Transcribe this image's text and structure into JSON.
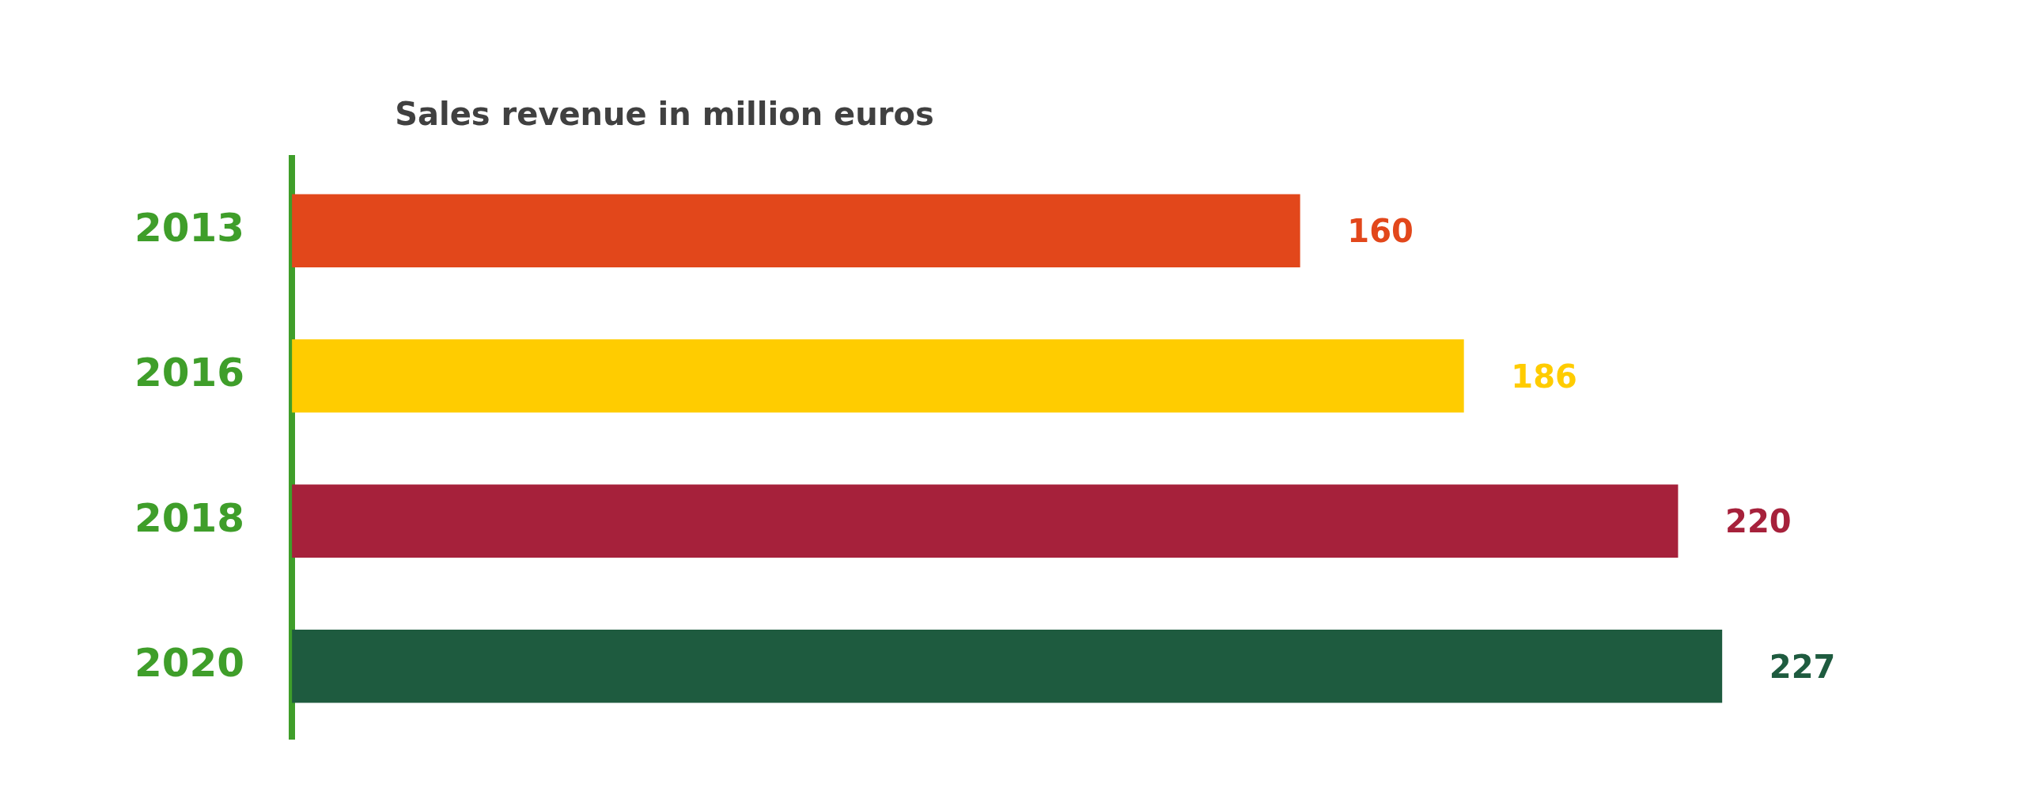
{
  "chart_data": {
    "type": "bar",
    "orientation": "horizontal",
    "title": "Sales revenue in million euros",
    "categories": [
      "2013",
      "2016",
      "2018",
      "2020"
    ],
    "values": [
      160,
      186,
      220,
      227
    ],
    "colors": [
      "#e2471b",
      "#ffcc00",
      "#a6213b",
      "#1e5b3f"
    ],
    "data_labels": true,
    "legend": false,
    "tick_labels": "y"
  }
}
